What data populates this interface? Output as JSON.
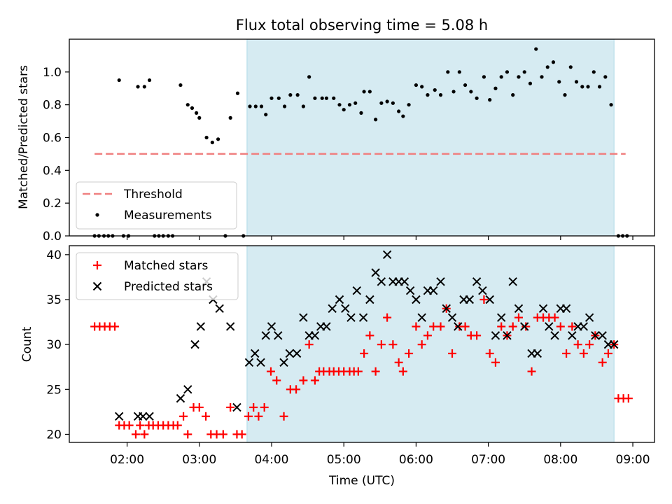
{
  "figure": {
    "title": "Flux total observing time = 5.08 h",
    "xlabel": "Time (UTC)",
    "x_tick_labels": [
      "02:00",
      "03:00",
      "04:00",
      "05:00",
      "06:00",
      "07:00",
      "08:00",
      "09:00"
    ]
  },
  "colors": {
    "shaded_interval": "#add8e6",
    "threshold": "#f08080",
    "measurement": "#000000",
    "matched": "#ff0000",
    "predicted": "#000000"
  },
  "chart_data": [
    {
      "type": "scatter",
      "panel": "top",
      "ylabel": "Matched/Predicted stars",
      "xlim_hours": [
        1.2,
        9.3
      ],
      "ylim": [
        0,
        1.2
      ],
      "y_ticks": [
        "0.0",
        "0.2",
        "0.4",
        "0.6",
        "0.8",
        "1.0"
      ],
      "shaded_interval_hours": [
        3.66,
        8.74
      ],
      "grid": false,
      "legend_placement": "lower-left",
      "threshold": {
        "name": "Threshold",
        "y": 0.5,
        "x_range_hours": [
          1.55,
          8.9
        ]
      },
      "series": [
        {
          "name": "Measurements",
          "points": [
            [
              1.55,
              0
            ],
            [
              1.61,
              0
            ],
            [
              1.68,
              0
            ],
            [
              1.74,
              0
            ],
            [
              1.8,
              0
            ],
            [
              1.89,
              0.95
            ],
            [
              1.95,
              0
            ],
            [
              2.02,
              0
            ],
            [
              2.15,
              0.91
            ],
            [
              2.24,
              0.91
            ],
            [
              2.31,
              0.95
            ],
            [
              2.38,
              0
            ],
            [
              2.44,
              0
            ],
            [
              2.5,
              0
            ],
            [
              2.57,
              0
            ],
            [
              2.63,
              0
            ],
            [
              2.74,
              0.92
            ],
            [
              2.84,
              0.8
            ],
            [
              2.9,
              0.78
            ],
            [
              2.96,
              0.75
            ],
            [
              3.0,
              0.72
            ],
            [
              3.1,
              0.6
            ],
            [
              3.18,
              0.57
            ],
            [
              3.26,
              0.59
            ],
            [
              3.36,
              0
            ],
            [
              3.43,
              0.72
            ],
            [
              3.53,
              0.87
            ],
            [
              3.61,
              0
            ],
            [
              3.7,
              0.79
            ],
            [
              3.78,
              0.79
            ],
            [
              3.86,
              0.79
            ],
            [
              3.92,
              0.74
            ],
            [
              4.0,
              0.84
            ],
            [
              4.1,
              0.84
            ],
            [
              4.18,
              0.79
            ],
            [
              4.26,
              0.86
            ],
            [
              4.36,
              0.86
            ],
            [
              4.44,
              0.79
            ],
            [
              4.52,
              0.97
            ],
            [
              4.6,
              0.84
            ],
            [
              4.7,
              0.84
            ],
            [
              4.76,
              0.84
            ],
            [
              4.86,
              0.84
            ],
            [
              4.94,
              0.8
            ],
            [
              5.0,
              0.77
            ],
            [
              5.08,
              0.8
            ],
            [
              5.16,
              0.81
            ],
            [
              5.24,
              0.75
            ],
            [
              5.28,
              0.88
            ],
            [
              5.36,
              0.88
            ],
            [
              5.44,
              0.71
            ],
            [
              5.52,
              0.81
            ],
            [
              5.6,
              0.82
            ],
            [
              5.68,
              0.81
            ],
            [
              5.76,
              0.76
            ],
            [
              5.82,
              0.73
            ],
            [
              5.9,
              0.8
            ],
            [
              6.0,
              0.92
            ],
            [
              6.08,
              0.91
            ],
            [
              6.16,
              0.86
            ],
            [
              6.26,
              0.89
            ],
            [
              6.34,
              0.86
            ],
            [
              6.44,
              1.0
            ],
            [
              6.52,
              0.88
            ],
            [
              6.6,
              1.0
            ],
            [
              6.68,
              0.92
            ],
            [
              6.76,
              0.88
            ],
            [
              6.84,
              0.84
            ],
            [
              6.94,
              0.97
            ],
            [
              7.02,
              0.83
            ],
            [
              7.1,
              0.9
            ],
            [
              7.18,
              0.97
            ],
            [
              7.26,
              1.0
            ],
            [
              7.34,
              0.86
            ],
            [
              7.42,
              0.97
            ],
            [
              7.5,
              1.0
            ],
            [
              7.58,
              0.93
            ],
            [
              7.66,
              1.14
            ],
            [
              7.74,
              0.97
            ],
            [
              7.82,
              1.03
            ],
            [
              7.9,
              1.06
            ],
            [
              7.98,
              0.94
            ],
            [
              8.06,
              0.86
            ],
            [
              8.14,
              1.03
            ],
            [
              8.22,
              0.94
            ],
            [
              8.3,
              0.91
            ],
            [
              8.38,
              0.91
            ],
            [
              8.46,
              1.0
            ],
            [
              8.54,
              0.91
            ],
            [
              8.62,
              0.97
            ],
            [
              8.7,
              0.8
            ],
            [
              8.8,
              0
            ],
            [
              8.86,
              0
            ],
            [
              8.92,
              0
            ]
          ]
        }
      ]
    },
    {
      "type": "scatter",
      "panel": "bottom",
      "ylabel": "Count",
      "xlim_hours": [
        1.2,
        9.3
      ],
      "ylim": [
        19.1,
        41.0
      ],
      "y_ticks": [
        "20",
        "25",
        "30",
        "35",
        "40"
      ],
      "shaded_interval_hours": [
        3.66,
        8.74
      ],
      "grid": false,
      "legend_placement": "top-left",
      "series": [
        {
          "name": "Matched stars",
          "marker": "plus",
          "points": [
            [
              1.55,
              32
            ],
            [
              1.62,
              32
            ],
            [
              1.69,
              32
            ],
            [
              1.76,
              32
            ],
            [
              1.83,
              32
            ],
            [
              1.89,
              21
            ],
            [
              1.96,
              21
            ],
            [
              2.03,
              21
            ],
            [
              2.12,
              20
            ],
            [
              2.18,
              21
            ],
            [
              2.24,
              20
            ],
            [
              2.3,
              21
            ],
            [
              2.36,
              21
            ],
            [
              2.43,
              21
            ],
            [
              2.5,
              21
            ],
            [
              2.57,
              21
            ],
            [
              2.64,
              21
            ],
            [
              2.7,
              21
            ],
            [
              2.78,
              22
            ],
            [
              2.84,
              20
            ],
            [
              2.92,
              23
            ],
            [
              3.0,
              23
            ],
            [
              3.09,
              22
            ],
            [
              3.16,
              20
            ],
            [
              3.24,
              20
            ],
            [
              3.33,
              20
            ],
            [
              3.43,
              23
            ],
            [
              3.52,
              20
            ],
            [
              3.59,
              20
            ],
            [
              3.68,
              22
            ],
            [
              3.75,
              23
            ],
            [
              3.82,
              22
            ],
            [
              3.9,
              23
            ],
            [
              3.99,
              27
            ],
            [
              4.07,
              26
            ],
            [
              4.17,
              22
            ],
            [
              4.26,
              25
            ],
            [
              4.34,
              25
            ],
            [
              4.44,
              26
            ],
            [
              4.52,
              30
            ],
            [
              4.6,
              26
            ],
            [
              4.66,
              27
            ],
            [
              4.72,
              27
            ],
            [
              4.8,
              27
            ],
            [
              4.86,
              27
            ],
            [
              4.93,
              27
            ],
            [
              5.0,
              27
            ],
            [
              5.08,
              27
            ],
            [
              5.14,
              27
            ],
            [
              5.2,
              27
            ],
            [
              5.28,
              29
            ],
            [
              5.36,
              31
            ],
            [
              5.44,
              27
            ],
            [
              5.52,
              30
            ],
            [
              5.6,
              33
            ],
            [
              5.68,
              30
            ],
            [
              5.76,
              28
            ],
            [
              5.82,
              27
            ],
            [
              5.9,
              29
            ],
            [
              6.0,
              32
            ],
            [
              6.08,
              30
            ],
            [
              6.16,
              31
            ],
            [
              6.24,
              32
            ],
            [
              6.34,
              32
            ],
            [
              6.42,
              34
            ],
            [
              6.5,
              29
            ],
            [
              6.6,
              32
            ],
            [
              6.68,
              32
            ],
            [
              6.76,
              31
            ],
            [
              6.84,
              31
            ],
            [
              6.94,
              35
            ],
            [
              7.02,
              29
            ],
            [
              7.1,
              28
            ],
            [
              7.18,
              32
            ],
            [
              7.26,
              31
            ],
            [
              7.34,
              32
            ],
            [
              7.42,
              33
            ],
            [
              7.52,
              32
            ],
            [
              7.6,
              27
            ],
            [
              7.68,
              33
            ],
            [
              7.76,
              33
            ],
            [
              7.84,
              33
            ],
            [
              7.92,
              33
            ],
            [
              8.0,
              32
            ],
            [
              8.08,
              29
            ],
            [
              8.16,
              32
            ],
            [
              8.24,
              30
            ],
            [
              8.32,
              29
            ],
            [
              8.4,
              30
            ],
            [
              8.48,
              31
            ],
            [
              8.58,
              28
            ],
            [
              8.66,
              29
            ],
            [
              8.74,
              30
            ],
            [
              8.8,
              24
            ],
            [
              8.87,
              24
            ],
            [
              8.94,
              24
            ]
          ]
        },
        {
          "name": "Predicted stars",
          "marker": "x",
          "points": [
            [
              1.89,
              22
            ],
            [
              2.15,
              22
            ],
            [
              2.22,
              22
            ],
            [
              2.31,
              22
            ],
            [
              2.74,
              24
            ],
            [
              2.84,
              25
            ],
            [
              2.94,
              30
            ],
            [
              3.02,
              32
            ],
            [
              3.1,
              37
            ],
            [
              3.19,
              35
            ],
            [
              3.28,
              34
            ],
            [
              3.43,
              32
            ],
            [
              3.52,
              23
            ],
            [
              3.69,
              28
            ],
            [
              3.77,
              29
            ],
            [
              3.85,
              28
            ],
            [
              3.92,
              31
            ],
            [
              4.0,
              32
            ],
            [
              4.09,
              31
            ],
            [
              4.17,
              28
            ],
            [
              4.25,
              29
            ],
            [
              4.35,
              29
            ],
            [
              4.44,
              33
            ],
            [
              4.52,
              31
            ],
            [
              4.6,
              31
            ],
            [
              4.68,
              32
            ],
            [
              4.76,
              32
            ],
            [
              4.84,
              34
            ],
            [
              4.94,
              35
            ],
            [
              5.02,
              34
            ],
            [
              5.1,
              33
            ],
            [
              5.18,
              36
            ],
            [
              5.27,
              33
            ],
            [
              5.36,
              35
            ],
            [
              5.44,
              38
            ],
            [
              5.52,
              37
            ],
            [
              5.6,
              40
            ],
            [
              5.68,
              37
            ],
            [
              5.76,
              37
            ],
            [
              5.84,
              37
            ],
            [
              5.92,
              36
            ],
            [
              6.0,
              35
            ],
            [
              6.08,
              33
            ],
            [
              6.16,
              36
            ],
            [
              6.24,
              36
            ],
            [
              6.34,
              37
            ],
            [
              6.42,
              34
            ],
            [
              6.5,
              33
            ],
            [
              6.58,
              32
            ],
            [
              6.66,
              35
            ],
            [
              6.74,
              35
            ],
            [
              6.84,
              37
            ],
            [
              6.92,
              36
            ],
            [
              7.02,
              35
            ],
            [
              7.1,
              31
            ],
            [
              7.18,
              33
            ],
            [
              7.26,
              31
            ],
            [
              7.34,
              37
            ],
            [
              7.42,
              34
            ],
            [
              7.5,
              32
            ],
            [
              7.6,
              29
            ],
            [
              7.68,
              29
            ],
            [
              7.76,
              34
            ],
            [
              7.84,
              32
            ],
            [
              7.92,
              31
            ],
            [
              8.0,
              34
            ],
            [
              8.08,
              34
            ],
            [
              8.16,
              31
            ],
            [
              8.24,
              32
            ],
            [
              8.32,
              32
            ],
            [
              8.4,
              33
            ],
            [
              8.48,
              31
            ],
            [
              8.58,
              31
            ],
            [
              8.66,
              30
            ],
            [
              8.74,
              30
            ]
          ]
        }
      ]
    }
  ]
}
